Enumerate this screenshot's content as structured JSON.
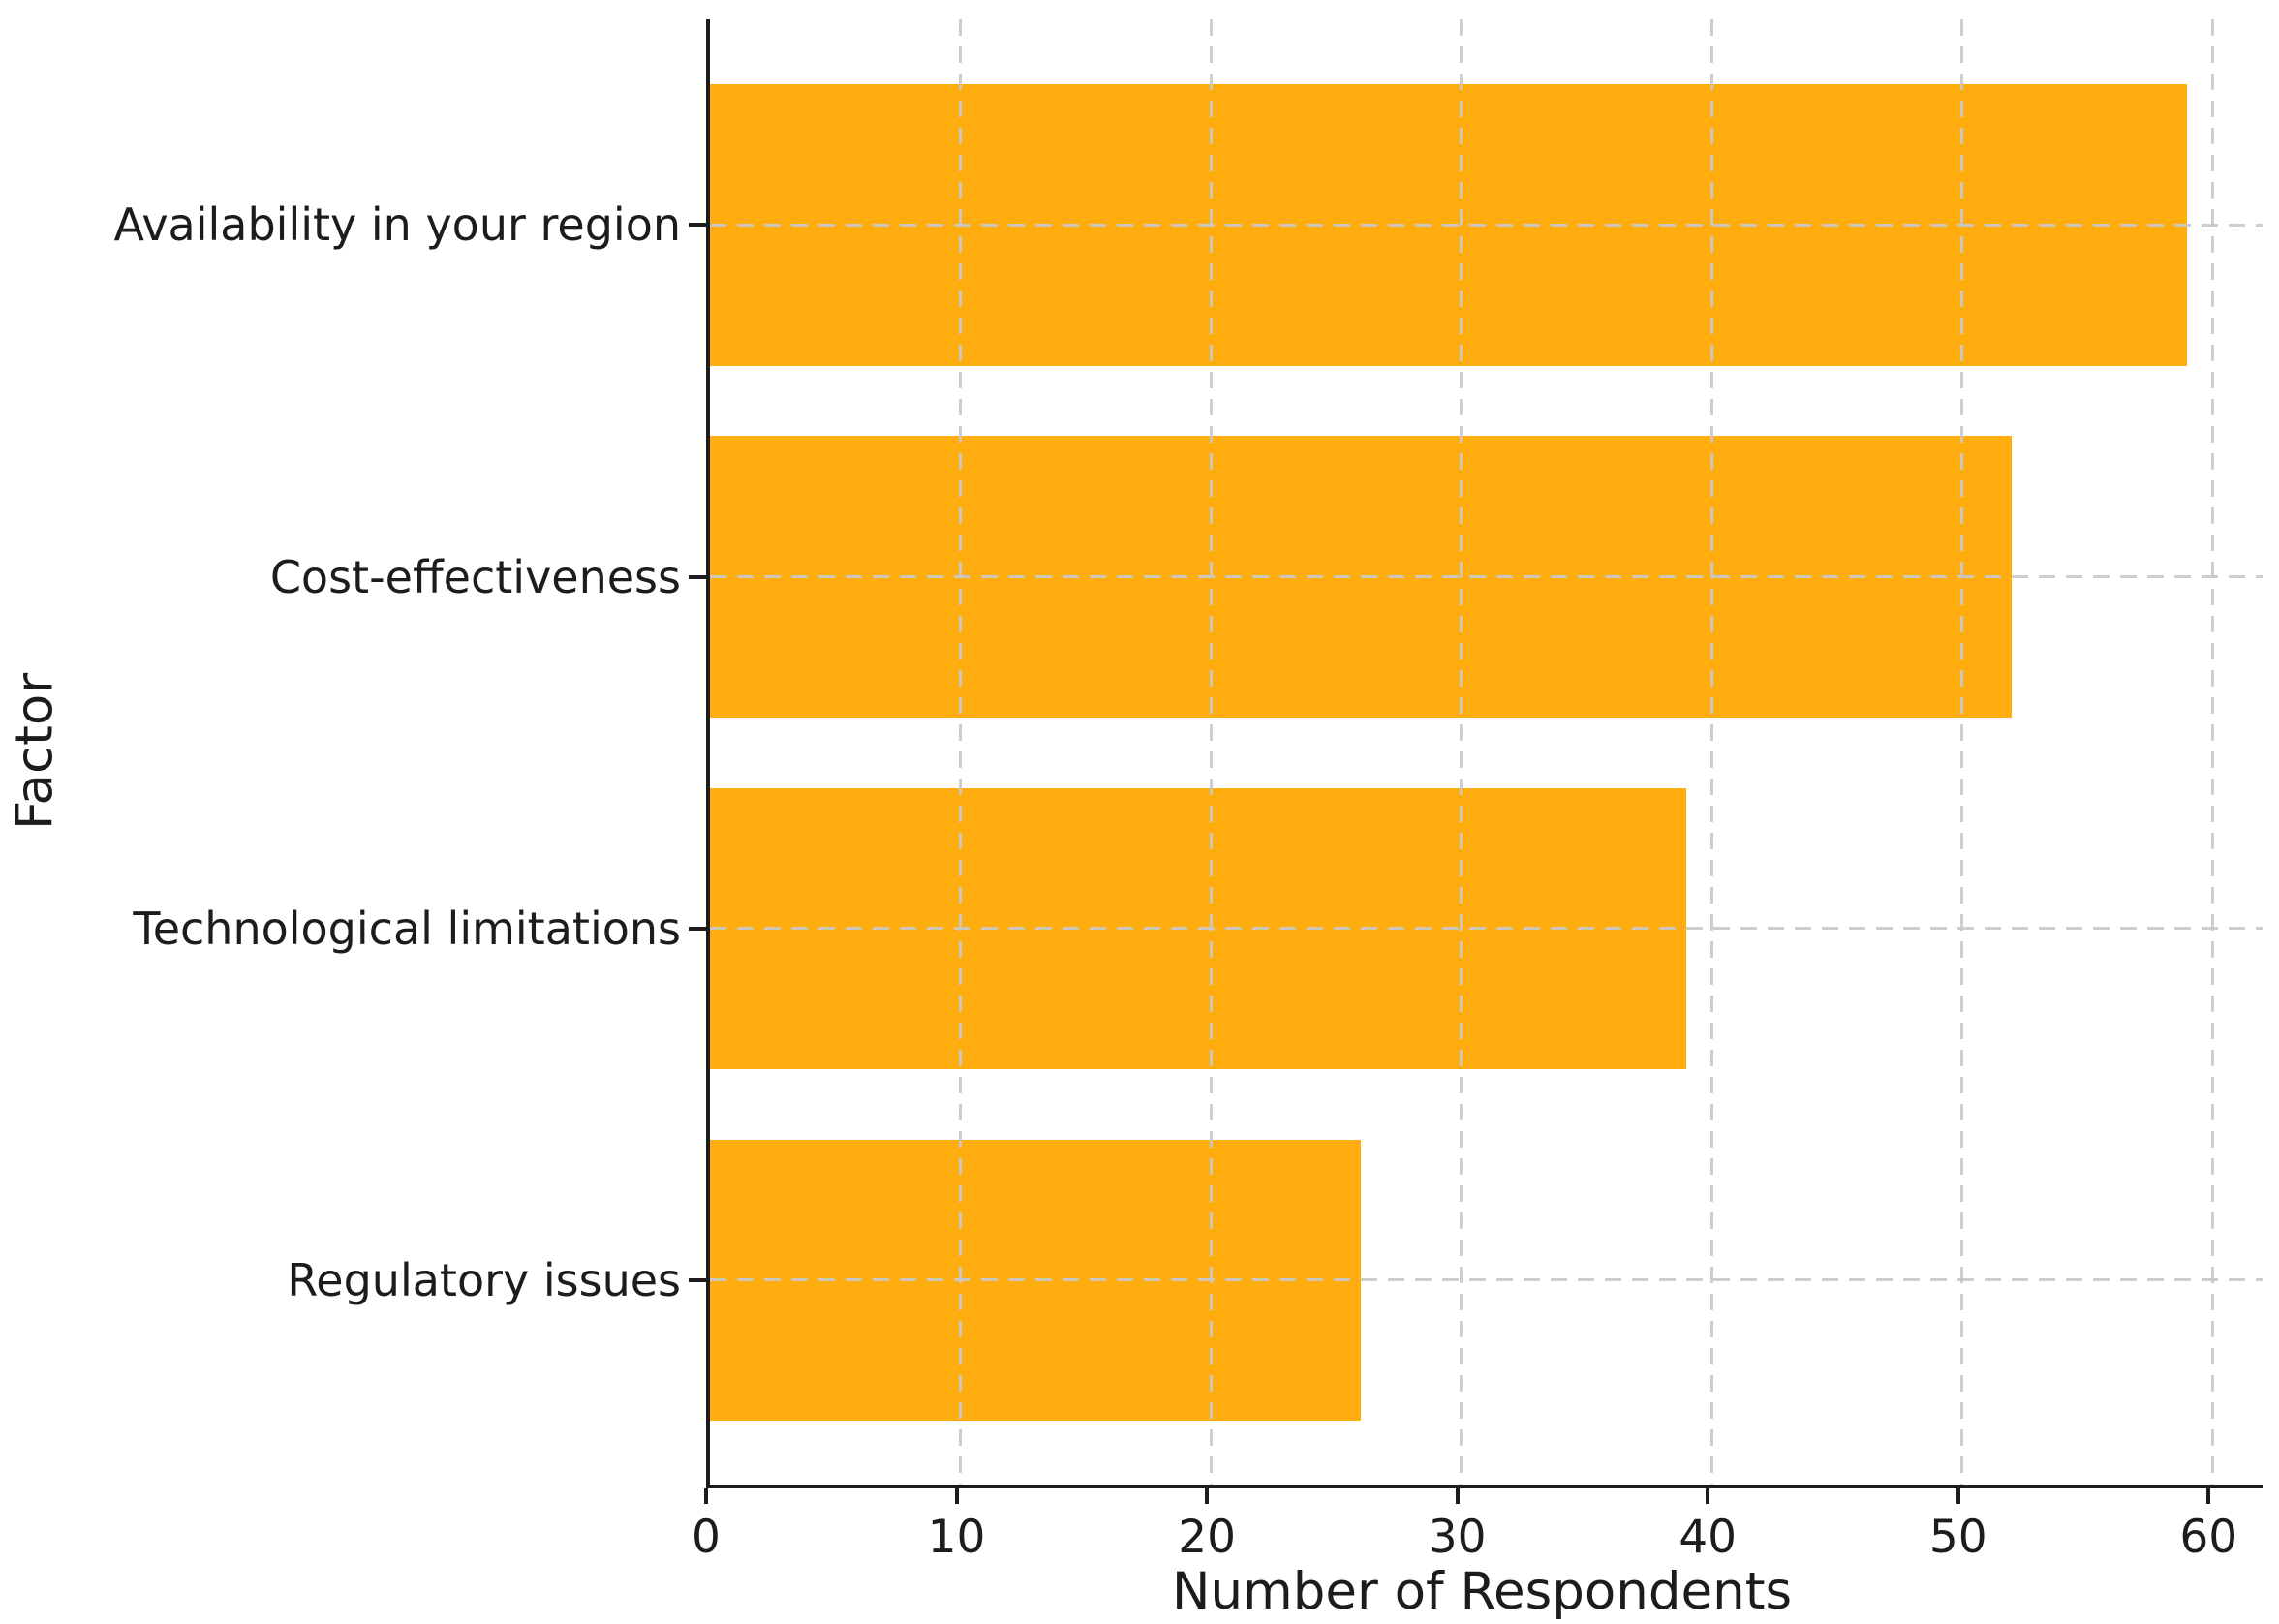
{
  "chart_data": {
    "type": "bar",
    "orientation": "horizontal",
    "title": "",
    "categories": [
      "Availability in your region",
      "Cost-effectiveness",
      "Technological limitations",
      "Regulatory issues"
    ],
    "values": [
      59,
      52,
      39,
      26
    ],
    "xlabel": "Number of Respondents",
    "ylabel": "Factor",
    "xlim": [
      0,
      62
    ],
    "xticks": [
      0,
      10,
      20,
      30,
      40,
      50,
      60
    ],
    "bar_color": "#FFAD0E",
    "grid": true,
    "grid_style": "dashed",
    "grid_color": "#c8c8c8",
    "gridlines": "vertical at each x tick and horizontal at each bar center, drawn over bars",
    "axis_color": "#1c1c1c",
    "background_color": "#ffffff",
    "legend": "none"
  }
}
